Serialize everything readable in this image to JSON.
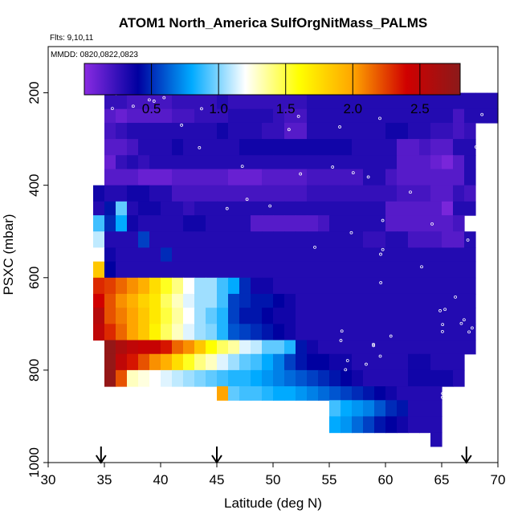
{
  "title": "ATOM1 North_America SulfOrgNitMass_PALMS",
  "flights_label": "Flts: 9,10,11",
  "dates_label": "MMDD: 0820,0822,0823",
  "chart_data": {
    "type": "heatmap",
    "xlabel": "Latitude (deg N)",
    "ylabel": "PSXC (mbar)",
    "xlim": [
      30,
      70
    ],
    "ylim": [
      1000,
      100
    ],
    "y_inverted": true,
    "x_ticks": [
      30,
      35,
      40,
      45,
      50,
      55,
      60,
      65,
      70
    ],
    "x_tick_labels": [
      "30",
      "35",
      "40",
      "45",
      "50",
      "55",
      "60",
      "65",
      "70"
    ],
    "y_ticks": [
      200,
      400,
      600,
      800,
      1000
    ],
    "y_tick_labels": [
      "200",
      "400",
      "600",
      "800",
      "1000"
    ],
    "colorbar": {
      "range": [
        0,
        2.8
      ],
      "ticks": [
        0.5,
        1.0,
        1.5,
        2.0,
        2.5
      ],
      "tick_labels": [
        "0.5",
        "1.0",
        "1.5",
        "2.0",
        "2.5"
      ],
      "colors": [
        "#8a2be2",
        "#0000a0",
        "#00aaff",
        "#ffffff",
        "#ffff00",
        "#ffa500",
        "#d00000",
        "#8b1a1a"
      ]
    },
    "profile_arrows_lat": [
      34.7,
      45,
      67.2
    ],
    "lat_edges": [
      35,
      36,
      37,
      38,
      39,
      40,
      41,
      42,
      43,
      44,
      45,
      46,
      47,
      48,
      49,
      50,
      51,
      52,
      53,
      54,
      55,
      56,
      57,
      58,
      59,
      60,
      61,
      62,
      63,
      64,
      65,
      66,
      67,
      68,
      69,
      70
    ],
    "pressure_edges": [
      165,
      200,
      235,
      265,
      300,
      335,
      365,
      400,
      435,
      465,
      500,
      535,
      565,
      600,
      635,
      665,
      700,
      735,
      765,
      800,
      835,
      865,
      900,
      935,
      965
    ],
    "grid_note": "values in mass units (colorbar); null = no data",
    "cells": [
      {
        "p_top": 165,
        "p_bot": 200,
        "lat_start": 35,
        "values": [
          0.3,
          0.3,
          0.3,
          0.3,
          0.3,
          0.3,
          0.3,
          0.3,
          0.3,
          0.3,
          0.3,
          0.3,
          0.3,
          0.3,
          0.3,
          0.3,
          0.3,
          0.3
        ]
      },
      {
        "p_top": 200,
        "p_bot": 235,
        "lat_start": 35,
        "values": [
          0.25,
          0.25,
          0.2,
          0.2,
          0.2,
          0.2,
          0.25,
          0.25,
          0.25,
          0.25,
          0.3,
          0.25,
          0.25,
          0.25,
          0.25,
          0.25,
          0.25,
          0.25,
          0.3,
          0.3,
          0.3,
          0.3,
          0.3,
          0.3,
          0.3,
          0.3,
          0.3,
          0.3,
          0.3,
          0.3,
          0.3,
          0.3,
          0.3,
          0.3,
          0.3
        ]
      },
      {
        "p_top": 235,
        "p_bot": 265,
        "lat_start": 35,
        "values": [
          0.15,
          0.1,
          0.15,
          0.15,
          0.15,
          0.15,
          0.2,
          0.2,
          0.25,
          0.25,
          0.25,
          0.3,
          0.3,
          0.3,
          0.3,
          0.25,
          0.2,
          0.2,
          0.3,
          0.3,
          0.3,
          0.3,
          0.3,
          0.3,
          0.3,
          0.3,
          0.3,
          0.3,
          0.3,
          0.3,
          0.3,
          0.2,
          0.3,
          0.3,
          0.3
        ]
      },
      {
        "p_top": 265,
        "p_bot": 300,
        "lat_start": 35,
        "values": [
          0.2,
          0.25,
          0.3,
          0.3,
          0.3,
          0.3,
          0.3,
          0.3,
          0.3,
          0.3,
          0.35,
          0.3,
          0.3,
          0.3,
          0.25,
          0.25,
          0.15,
          0.15,
          0.3,
          0.3,
          0.3,
          0.3,
          0.3,
          0.3,
          0.3,
          0.35,
          0.35,
          0.3,
          0.3,
          0.25,
          0.25,
          0.2,
          0.25
        ]
      },
      {
        "p_top": 300,
        "p_bot": 335,
        "lat_start": 35,
        "values": [
          0.15,
          0.15,
          0.2,
          0.3,
          0.3,
          0.3,
          0.35,
          0.3,
          0.3,
          0.3,
          0.3,
          0.3,
          0.35,
          0.35,
          0.35,
          0.35,
          0.35,
          0.35,
          0.35,
          0.35,
          0.35,
          0.35,
          0.3,
          0.3,
          0.3,
          0.3,
          0.15,
          0.15,
          0.2,
          0.15,
          0.15,
          0.3,
          0.3
        ]
      },
      {
        "p_top": 335,
        "p_bot": 365,
        "lat_start": 35,
        "values": [
          0.1,
          0.25,
          0.3,
          0.25,
          0.3,
          0.3,
          0.3,
          0.3,
          0.3,
          0.3,
          0.3,
          0.3,
          0.3,
          0.3,
          0.3,
          0.3,
          0.3,
          0.3,
          0.3,
          0.3,
          0.3,
          0.3,
          0.3,
          0.3,
          0.3,
          0.3,
          0.15,
          0.15,
          0.15,
          0.1,
          0.05,
          0.15,
          0.3
        ]
      },
      {
        "p_top": 365,
        "p_bot": 400,
        "lat_start": 35,
        "values": [
          0.15,
          0.15,
          0.15,
          0.1,
          0.1,
          0.1,
          0.15,
          0.15,
          0.15,
          0.15,
          0.15,
          0.1,
          0.1,
          0.1,
          0.15,
          0.15,
          0.15,
          0.15,
          0.2,
          0.2,
          0.2,
          0.2,
          0.2,
          0.3,
          0.3,
          0.2,
          0.15,
          0.15,
          0.15,
          0.15,
          0.15,
          0.15,
          0.3
        ]
      },
      {
        "p_top": 400,
        "p_bot": 435,
        "lat_start": 34,
        "values": [
          0.35,
          0.3,
          0.3,
          0.35,
          0.35,
          0.3,
          0.3,
          0.2,
          0.2,
          0.2,
          0.2,
          0.2,
          0.2,
          0.2,
          0.2,
          0.2,
          0.2,
          0.2,
          0.2,
          0.25,
          0.25,
          0.25,
          0.25,
          0.25,
          0.25,
          0.25,
          0.25,
          0.2,
          0.2,
          0.2,
          0.15,
          0.15,
          0.25,
          0.2
        ]
      },
      {
        "p_top": 435,
        "p_bot": 465,
        "lat_start": 34,
        "values": [
          0.3,
          0.45,
          0.95,
          0.3,
          0.35,
          0.35,
          0.3,
          0.3,
          0.25,
          0.3,
          0.3,
          0.3,
          0.3,
          0.3,
          0.3,
          0.3,
          0.3,
          0.3,
          0.3,
          0.3,
          0.3,
          0.3,
          0.3,
          0.3,
          0.3,
          0.3,
          0.15,
          0.15,
          0.15,
          0.15,
          0.15,
          0.05,
          0.3,
          0.3
        ]
      },
      {
        "p_top": 465,
        "p_bot": 500,
        "lat_start": 34,
        "values": [
          0.9,
          0.5,
          0.8,
          0.35,
          0.3,
          0.3,
          0.3,
          0.3,
          0.35,
          0.35,
          0.3,
          0.3,
          0.3,
          0.3,
          0.15,
          0.15,
          0.15,
          0.15,
          0.15,
          0.15,
          0.2,
          0.3,
          0.3,
          0.3,
          0.3,
          0.3,
          0.15,
          0.15,
          0.15,
          0.15,
          0.15,
          0.15,
          0.2
        ]
      },
      {
        "p_top": 500,
        "p_bot": 535,
        "lat_start": 34,
        "values": [
          1.1,
          0.3,
          0.3,
          0.3,
          0.55,
          0.3,
          0.3,
          0.3,
          0.3,
          0.3,
          0.3,
          0.3,
          0.3,
          0.3,
          0.3,
          0.3,
          0.3,
          0.3,
          0.3,
          0.3,
          0.3,
          0.3,
          0.3,
          0.3,
          0.25,
          0.25,
          0.3,
          0.3,
          0.2,
          0.2,
          0.2,
          0.15,
          0.15,
          0.3
        ]
      },
      {
        "p_top": 535,
        "p_bot": 565,
        "lat_start": 34,
        "values": [
          1.2,
          0.35,
          0.3,
          0.3,
          0.3,
          0.3,
          0.5,
          0.3,
          0.3,
          0.3,
          0.3,
          0.3,
          0.3,
          0.3,
          0.3,
          0.3,
          0.3,
          0.3,
          0.3,
          0.3,
          0.3,
          0.3,
          0.3,
          0.3,
          0.3,
          0.3,
          0.3,
          0.3,
          0.3,
          0.3,
          0.3,
          0.3,
          0.3,
          0.3
        ]
      },
      {
        "p_top": 565,
        "p_bot": 600,
        "lat_start": 34,
        "values": [
          1.85,
          0.4,
          0.3,
          0.3,
          0.3,
          0.3,
          0.3,
          0.3,
          0.3,
          0.3,
          0.3,
          0.3,
          0.3,
          0.3,
          0.3,
          0.3,
          0.3,
          0.3,
          0.3,
          0.3,
          0.3,
          0.3,
          0.3,
          0.3,
          0.3,
          0.3,
          0.3,
          0.3,
          0.3,
          0.3,
          0.3,
          0.3,
          0.3,
          0.3
        ]
      },
      {
        "p_top": 600,
        "p_bot": 635,
        "lat_start": 34,
        "values": [
          2.3,
          2.25,
          2.15,
          2.05,
          1.95,
          1.75,
          1.55,
          1.4,
          1.2,
          1.05,
          1.05,
          0.9,
          0.8,
          0.5,
          0.35,
          0.35,
          0.3,
          0.3,
          0.3,
          0.3,
          0.3,
          0.3,
          0.3,
          0.3,
          0.3,
          0.3,
          0.3,
          0.3,
          0.3,
          0.3,
          0.3,
          0.3,
          0.3,
          0.3
        ]
      },
      {
        "p_top": 635,
        "p_bot": 665,
        "lat_start": 34,
        "values": [
          2.4,
          2.2,
          2.05,
          1.95,
          1.8,
          1.7,
          1.45,
          1.3,
          1.15,
          1.05,
          1.05,
          0.9,
          0.55,
          0.5,
          0.45,
          0.45,
          0.4,
          0.35,
          0.3,
          0.3,
          0.3,
          0.3,
          0.3,
          0.3,
          0.3,
          0.3,
          0.3,
          0.3,
          0.3,
          0.3,
          0.3,
          0.3,
          0.3,
          0.3
        ]
      },
      {
        "p_top": 665,
        "p_bot": 700,
        "lat_start": 34,
        "values": [
          2.55,
          2.2,
          2.1,
          2.0,
          1.85,
          1.7,
          1.5,
          1.35,
          1.2,
          1.05,
          0.95,
          0.85,
          0.55,
          0.45,
          0.45,
          0.4,
          0.35,
          0.35,
          0.3,
          0.3,
          0.3,
          0.3,
          0.3,
          0.3,
          0.3,
          0.3,
          0.3,
          0.3,
          0.3,
          0.3,
          0.3,
          0.3,
          0.3,
          0.3
        ]
      },
      {
        "p_top": 700,
        "p_bot": 735,
        "lat_start": 34,
        "values": [
          2.5,
          2.3,
          2.15,
          2.0,
          1.85,
          1.65,
          1.45,
          1.3,
          1.15,
          1.05,
          1.0,
          0.85,
          0.6,
          0.55,
          0.5,
          0.45,
          0.4,
          0.35,
          0.3,
          0.3,
          0.3,
          0.3,
          0.3,
          0.3,
          0.3,
          0.3,
          0.3,
          0.3,
          0.3,
          0.3,
          0.3,
          0.3,
          0.3,
          0.3
        ]
      },
      {
        "p_top": 735,
        "p_bot": 765,
        "lat_start": 35,
        "values": [
          2.75,
          2.6,
          2.5,
          2.45,
          2.45,
          2.35,
          2.15,
          2.05,
          1.85,
          1.6,
          1.45,
          1.35,
          1.15,
          1.1,
          0.95,
          0.95,
          0.85,
          0.45,
          0.35,
          0.3,
          0.3,
          0.3,
          0.3,
          0.3,
          0.3,
          0.3,
          0.3,
          0.3,
          0.3,
          0.3,
          0.3,
          0.3,
          0.3
        ]
      },
      {
        "p_top": 765,
        "p_bot": 800,
        "lat_start": 35,
        "values": [
          2.75,
          2.5,
          2.35,
          2.2,
          2.05,
          1.95,
          1.75,
          1.55,
          1.4,
          1.3,
          1.15,
          1.05,
          0.95,
          0.9,
          0.8,
          0.7,
          0.55,
          0.45,
          0.4,
          0.4,
          0.35,
          0.35,
          0.3,
          0.3,
          0.3,
          0.3,
          0.3,
          0.35,
          0.35,
          0.3,
          0.3,
          0.3
        ]
      },
      {
        "p_top": 800,
        "p_bot": 835,
        "lat_start": 35,
        "values": [
          2.75,
          2.2,
          1.3,
          1.25,
          1.2,
          1.15,
          1.1,
          1.05,
          1.0,
          0.95,
          0.9,
          0.85,
          0.85,
          0.8,
          0.75,
          0.7,
          0.65,
          0.6,
          0.55,
          0.5,
          0.45,
          0.4,
          0.35,
          0.3,
          0.3,
          0.3,
          0.3,
          0.35,
          0.35,
          0.35,
          0.35,
          0.3
        ]
      },
      {
        "p_top": 835,
        "p_bot": 865,
        "lat_start": 45,
        "values": [
          2.0,
          0.95,
          0.9,
          0.9,
          0.85,
          0.8,
          0.8,
          0.75,
          0.7,
          0.65,
          0.6,
          0.55,
          0.5,
          0.45,
          0.4,
          0.35,
          0.3,
          0.3,
          0.3,
          0.3
        ]
      },
      {
        "p_top": 865,
        "p_bot": 900,
        "lat_start": 45,
        "values": [
          null,
          null,
          null,
          null,
          null,
          null,
          null,
          null,
          null,
          null,
          0.9,
          0.8,
          0.75,
          0.7,
          0.6,
          0.5,
          0.45,
          0.3,
          0.3,
          0.3
        ]
      },
      {
        "p_top": 900,
        "p_bot": 935,
        "lat_start": 55,
        "values": [
          0.8,
          0.75,
          0.65,
          0.55,
          0.45,
          0.4,
          0.35,
          0.3,
          0.3,
          0.3
        ]
      },
      {
        "p_top": 935,
        "p_bot": 965,
        "lat_start": 64,
        "values": [
          0.3
        ]
      }
    ]
  }
}
